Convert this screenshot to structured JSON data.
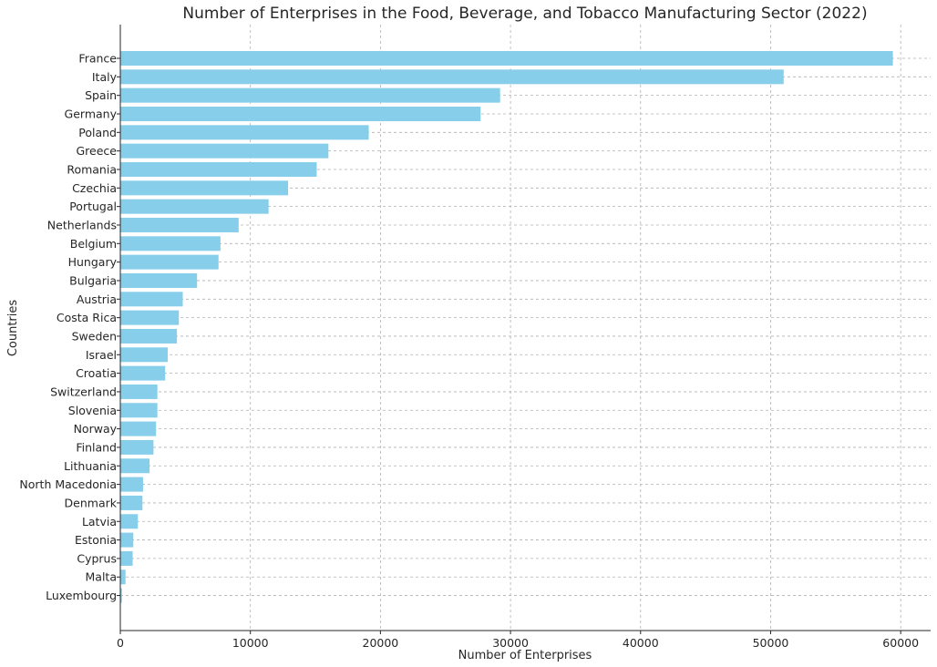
{
  "chart_data": {
    "type": "bar",
    "orientation": "horizontal",
    "title": "Number of Enterprises in the Food, Beverage, and Tobacco Manufacturing Sector (2022)",
    "xlabel": "Number of Enterprises",
    "ylabel": "Countries",
    "xlim": [
      0,
      62300
    ],
    "xticks": [
      0,
      10000,
      20000,
      30000,
      40000,
      50000,
      60000
    ],
    "xtick_labels": [
      "0",
      "10000",
      "20000",
      "30000",
      "40000",
      "50000",
      "60000"
    ],
    "grid": true,
    "bar_color": "#87CEEB",
    "categories": [
      "France",
      "Italy",
      "Spain",
      "Germany",
      "Poland",
      "Greece",
      "Romania",
      "Czechia",
      "Portugal",
      "Netherlands",
      "Belgium",
      "Hungary",
      "Bulgaria",
      "Austria",
      "Costa Rica",
      "Sweden",
      "Israel",
      "Croatia",
      "Switzerland",
      "Slovenia",
      "Norway",
      "Finland",
      "Lithuania",
      "North Macedonia",
      "Denmark",
      "Latvia",
      "Estonia",
      "Cyprus",
      "Malta",
      "Luxembourg"
    ],
    "values": [
      59400,
      51000,
      29200,
      27700,
      19100,
      16000,
      15100,
      12900,
      11400,
      9100,
      7700,
      7550,
      5900,
      4800,
      4500,
      4350,
      3650,
      3450,
      2850,
      2850,
      2750,
      2550,
      2250,
      1750,
      1700,
      1350,
      1000,
      950,
      400,
      120
    ]
  }
}
